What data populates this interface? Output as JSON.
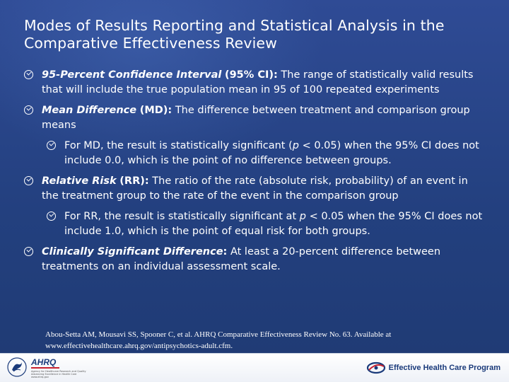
{
  "title": "Modes of Results Reporting and Statistical Analysis in the Comparative Effectiveness Review",
  "bullets": [
    {
      "term": "95-Percent Confidence Interval",
      "abbr": "(95% CI):",
      "text": "The range of statistically valid results that will include the true population mean in 95 of 100 repeated experiments"
    },
    {
      "term": "Mean Difference",
      "abbr": "(MD):",
      "text": "The difference between treatment and comparison group means",
      "sub": {
        "part1": "For MD, the result is statistically significant (",
        "p": "p",
        "part2": " < 0.05) when the 95% CI does not include 0.0, which is the point of no difference between groups."
      }
    },
    {
      "term": "Relative Risk",
      "abbr": "(RR):",
      "text": "The ratio of the rate (absolute risk, probability) of an event in the treatment group to the rate of the event in the comparison group",
      "sub": {
        "part1": "For RR, the result is statistically significant at ",
        "p": "p",
        "part2": " < 0.05 when the 95% CI does not include 1.0, which is the point of equal risk for both groups."
      }
    },
    {
      "term": "Clinically Significant Difference",
      "abbr": ":",
      "text": "At least a 20-percent difference between treatments on an individual assessment scale."
    }
  ],
  "citation": "Abou-Setta AM, Mousavi SS, Spooner C, et al. AHRQ Comparative Effectiveness Review No. 63. Available at www.effectivehealthcare.ahrq.gov/antipsychotics-adult.cfm.",
  "footer": {
    "ahrq_logo": "AHRQ",
    "ahrq_tagline": "Agency for Healthcare Research and Quality",
    "ahrq_tagline2": "Advancing Excellence in Health Care",
    "ahrq_url": "www.ahrq.gov",
    "program_name": "Effective Health Care Program"
  },
  "colors": {
    "background": "#23407f",
    "text": "#ffffff",
    "footer": "#ffffff",
    "brand_blue": "#1a3a7a",
    "brand_red": "#c8202f"
  }
}
